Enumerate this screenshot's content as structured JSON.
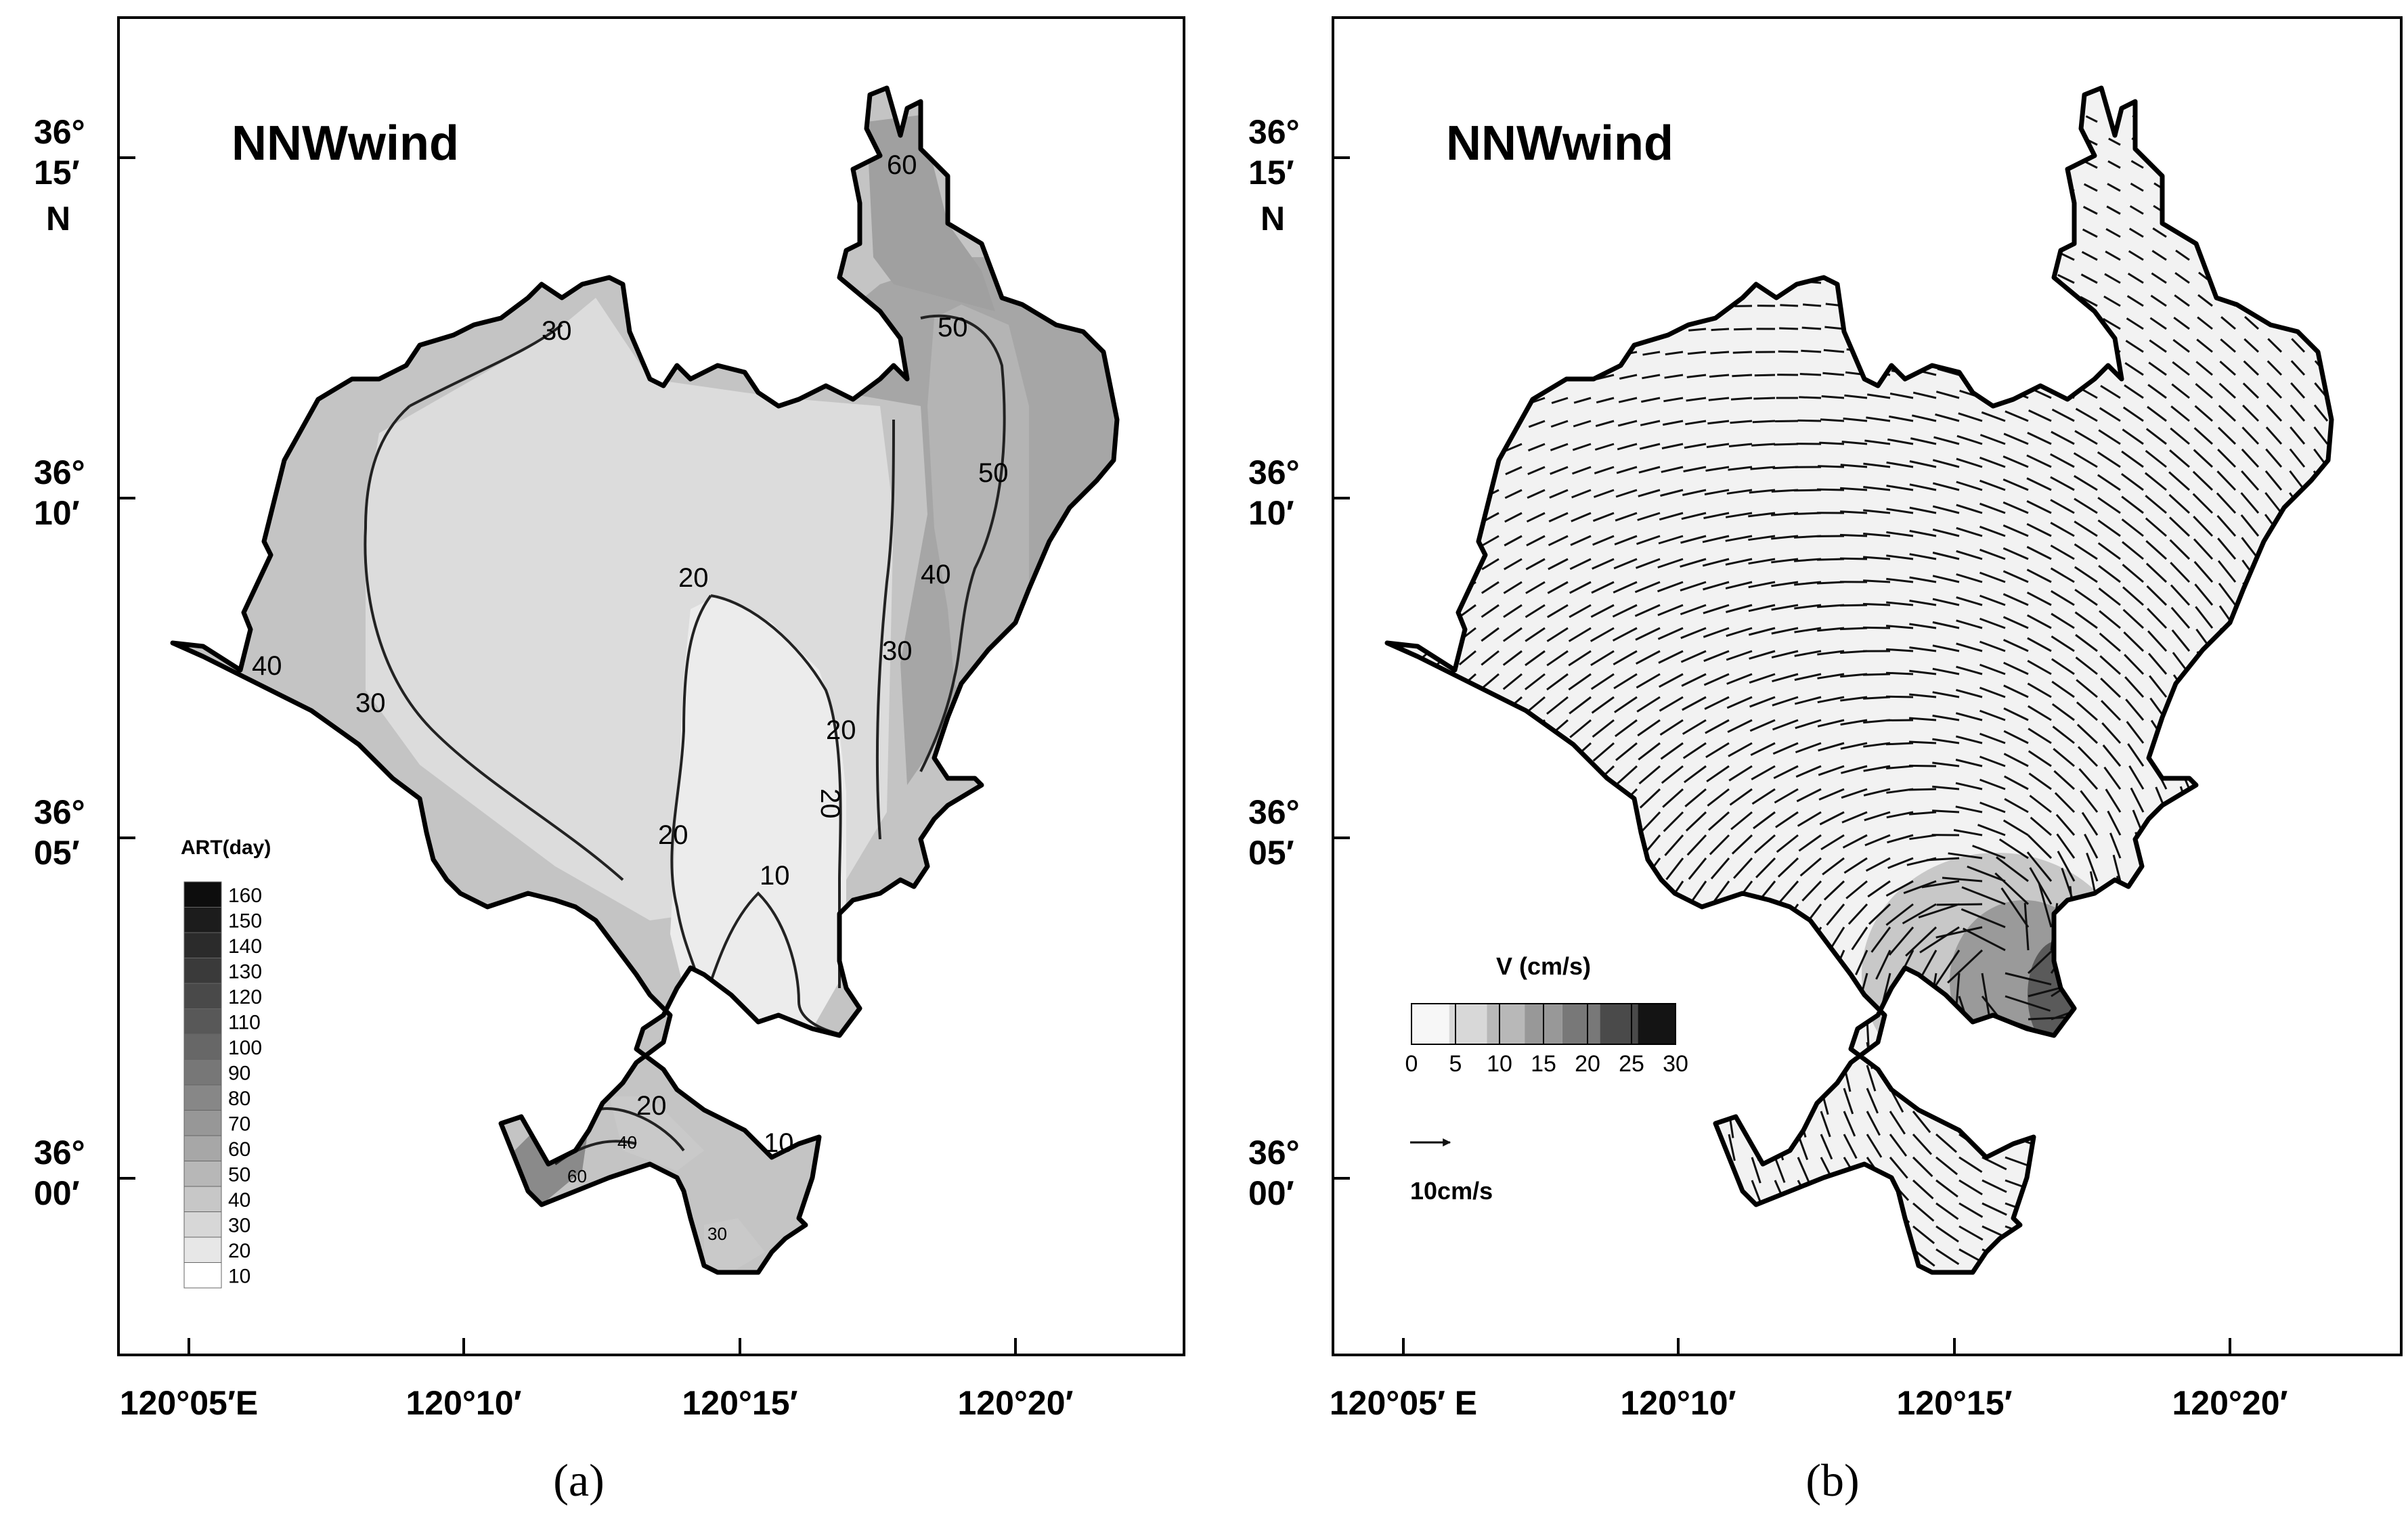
{
  "panel_a": {
    "title": "NNWwind",
    "caption": "(a)",
    "lat_labels": [
      [
        "36°",
        "15′",
        "N"
      ],
      [
        "36°",
        "10′"
      ],
      [
        "36°",
        "05′"
      ],
      [
        "36°",
        "00′"
      ]
    ],
    "lon_labels": [
      "120°05′E",
      "120°10′",
      "120°15′",
      "120°20′"
    ],
    "contour_labels": [
      "60",
      "50",
      "50",
      "40",
      "30",
      "30",
      "40",
      "30",
      "20",
      "20",
      "20",
      "20",
      "10",
      "20",
      "40",
      "60",
      "10",
      "30"
    ],
    "legend": {
      "title": "ART(day)",
      "levels": [
        "160",
        "150",
        "140",
        "130",
        "120",
        "110",
        "100",
        "90",
        "80",
        "70",
        "60",
        "50",
        "40",
        "30",
        "20",
        "10"
      ],
      "colors": [
        "#0d0d0d",
        "#1c1c1c",
        "#2b2b2b",
        "#3a3a3a",
        "#494949",
        "#585858",
        "#676767",
        "#777777",
        "#878787",
        "#979797",
        "#a7a7a7",
        "#b7b7b7",
        "#c7c7c7",
        "#d7d7d7",
        "#e7e7e7",
        "#ffffff"
      ]
    }
  },
  "panel_b": {
    "title": "NNWwind",
    "caption": "(b)",
    "lat_labels": [
      [
        "36°",
        "15′",
        "N"
      ],
      [
        "36°",
        "10′"
      ],
      [
        "36°",
        "05′"
      ],
      [
        "36°",
        "00′"
      ]
    ],
    "lon_labels": [
      "120°05′ E",
      "120°10′",
      "120°15′",
      "120°20′"
    ],
    "legend": {
      "title": "V (cm/s)",
      "ticks": [
        "0",
        "5",
        "10",
        "15",
        "20",
        "25",
        "30"
      ],
      "colors": [
        "#f7f7f7",
        "#d8d8d8",
        "#b8b8b8",
        "#989898",
        "#787878",
        "#4a4a4a",
        "#141414"
      ]
    },
    "reference_arrow_label": "10cm/s"
  },
  "colors": {
    "region_high": "#a0a0a0",
    "region_mid": "#c4c4c4",
    "region_low": "#dcdcdc",
    "region_lowest": "#ececec"
  }
}
